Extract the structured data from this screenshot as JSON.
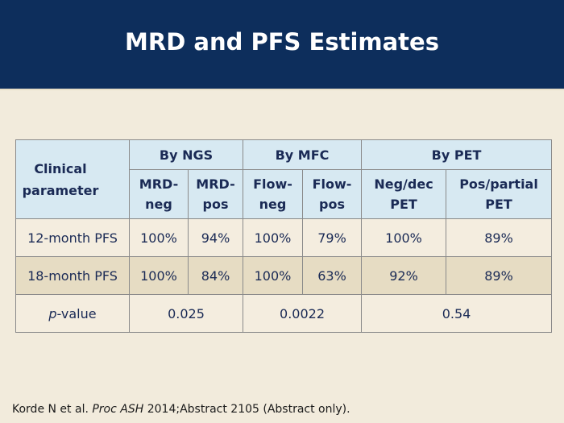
{
  "title": "MRD and PFS Estimates",
  "table": {
    "param_header": "Clinical parameter",
    "groups": [
      "By NGS",
      "By MFC",
      "By PET"
    ],
    "subheaders": [
      "MRD-neg",
      "MRD-pos",
      "Flow-neg",
      "Flow-pos",
      "Neg/dec PET",
      "Pos/partial PET"
    ],
    "rows": [
      {
        "label": "12-month PFS",
        "values": [
          "100%",
          "94%",
          "100%",
          "79%",
          "100%",
          "89%"
        ]
      },
      {
        "label": "18-month PFS",
        "values": [
          "100%",
          "84%",
          "100%",
          "63%",
          "92%",
          "89%"
        ]
      }
    ],
    "pvalue_row": {
      "label_italic": "p",
      "label_rest": "-value",
      "values": [
        "0.025",
        "0.0022",
        "0.54"
      ]
    }
  },
  "footer": {
    "authors": "Korde N et al.",
    "journal": "Proc ASH",
    "rest": "2014;Abstract 2105 (Abstract only)."
  }
}
